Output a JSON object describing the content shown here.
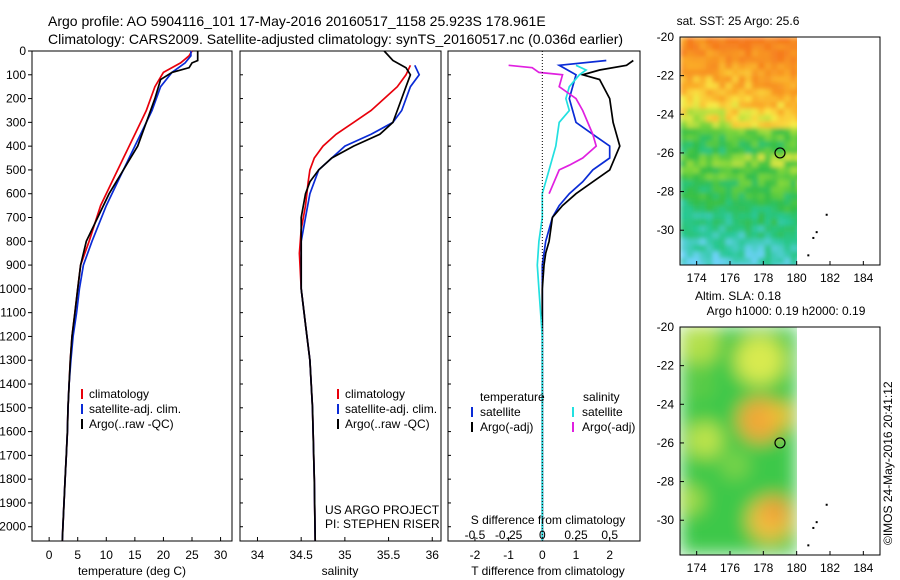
{
  "header": {
    "line1": "Argo profile: AO 5904116_101 17-May-2016 20160517_1158 25.923S 178.961E",
    "line2": "Climatology: CARS2009. Satellite-adjusted climatology: synTS_20160517.nc (0.036d earlier)"
  },
  "side_label": "©IMOS 24-May-2016 20:41:12",
  "colors": {
    "climatology": "#e8000b",
    "satellite": "#0a2bd6",
    "argo": "#000000",
    "salinity_sat": "#22e0e0",
    "salinity_argo": "#e020e0"
  },
  "chart_data": [
    {
      "type": "line",
      "xlabel": "temperature (deg C)",
      "xticks": [
        0,
        5,
        10,
        15,
        20,
        25,
        30
      ],
      "xlim": [
        -3,
        32
      ],
      "ylim": [
        2060,
        0
      ],
      "yticks": [
        0,
        100,
        200,
        300,
        400,
        500,
        600,
        700,
        800,
        900,
        1000,
        1100,
        1200,
        1300,
        1400,
        1500,
        1600,
        1700,
        1800,
        1900,
        2000
      ],
      "legend": [
        "climatology",
        "satellite-adj. clim.",
        "Argo(..raw -QC)"
      ],
      "series": [
        {
          "name": "climatology",
          "color": "#e8000b",
          "points": [
            [
              25,
              0
            ],
            [
              24.5,
              20
            ],
            [
              23,
              50
            ],
            [
              20,
              90
            ],
            [
              18.5,
              150
            ],
            [
              17,
              250
            ],
            [
              15,
              350
            ],
            [
              13,
              450
            ],
            [
              11,
              550
            ],
            [
              9,
              650
            ],
            [
              7,
              800
            ],
            [
              5.5,
              900
            ],
            [
              5,
              1000
            ],
            [
              4.5,
              1100
            ],
            [
              4,
              1200
            ],
            [
              3.7,
              1300
            ],
            [
              3.5,
              1400
            ],
            [
              3.3,
              1500
            ],
            [
              3.2,
              1600
            ],
            [
              3,
              1700
            ],
            [
              2.8,
              1800
            ],
            [
              2.6,
              1900
            ],
            [
              2.4,
              2000
            ],
            [
              2.3,
              2060
            ]
          ]
        },
        {
          "name": "satellite-adj. clim.",
          "color": "#0a2bd6",
          "points": [
            [
              24.8,
              0
            ],
            [
              24.8,
              20
            ],
            [
              23.8,
              50
            ],
            [
              21.5,
              90
            ],
            [
              19.5,
              150
            ],
            [
              18,
              250
            ],
            [
              16,
              350
            ],
            [
              14,
              450
            ],
            [
              12,
              550
            ],
            [
              10,
              650
            ],
            [
              7.5,
              800
            ],
            [
              6,
              900
            ],
            [
              5.3,
              1000
            ],
            [
              4.8,
              1100
            ],
            [
              4.2,
              1200
            ],
            [
              3.8,
              1300
            ],
            [
              3.5,
              1400
            ],
            [
              3.3,
              1500
            ],
            [
              3.2,
              1600
            ],
            [
              3,
              1700
            ],
            [
              2.8,
              1800
            ],
            [
              2.6,
              1900
            ],
            [
              2.4,
              2000
            ],
            [
              2.3,
              2060
            ]
          ]
        },
        {
          "name": "Argo(..raw -QC)",
          "color": "#000000",
          "points": [
            [
              26,
              0
            ],
            [
              26,
              40
            ],
            [
              25,
              50
            ],
            [
              24.5,
              70
            ],
            [
              21.5,
              90
            ],
            [
              19.5,
              120
            ],
            [
              18.5,
              200
            ],
            [
              17,
              300
            ],
            [
              15.5,
              400
            ],
            [
              13,
              500
            ],
            [
              10.5,
              600
            ],
            [
              8.5,
              700
            ],
            [
              6.5,
              800
            ],
            [
              5.5,
              900
            ],
            [
              5,
              1000
            ],
            [
              4.5,
              1100
            ],
            [
              4,
              1200
            ],
            [
              3.7,
              1300
            ],
            [
              3.5,
              1400
            ],
            [
              3.3,
              1500
            ],
            [
              3.2,
              1600
            ],
            [
              3,
              1700
            ],
            [
              2.8,
              1800
            ],
            [
              2.6,
              1900
            ],
            [
              2.4,
              2000
            ],
            [
              2.3,
              2060
            ]
          ]
        }
      ]
    },
    {
      "type": "line",
      "xlabel": "salinity",
      "xticks": [
        34,
        34.5,
        35,
        35.5,
        36
      ],
      "xlim": [
        33.8,
        36.1
      ],
      "ylim": [
        2060,
        0
      ],
      "legend": [
        "climatology",
        "satellite-adj. clim.",
        "Argo(..raw -QC)"
      ],
      "credit": [
        "US ARGO PROJECT",
        "PI: STEPHEN RISER"
      ],
      "series": [
        {
          "name": "climatology",
          "color": "#e8000b",
          "points": [
            [
              35.75,
              60
            ],
            [
              35.7,
              100
            ],
            [
              35.6,
              150
            ],
            [
              35.45,
              200
            ],
            [
              35.3,
              250
            ],
            [
              35.1,
              300
            ],
            [
              34.9,
              350
            ],
            [
              34.75,
              400
            ],
            [
              34.65,
              450
            ],
            [
              34.6,
              500
            ],
            [
              34.58,
              550
            ],
            [
              34.55,
              650
            ],
            [
              34.5,
              750
            ],
            [
              34.48,
              850
            ],
            [
              34.5,
              1000
            ],
            [
              34.55,
              1150
            ],
            [
              34.6,
              1300
            ],
            [
              34.63,
              1500
            ],
            [
              34.65,
              1800
            ],
            [
              34.66,
              2060
            ]
          ]
        },
        {
          "name": "satellite-adj. clim.",
          "color": "#0a2bd6",
          "points": [
            [
              35.8,
              60
            ],
            [
              35.85,
              100
            ],
            [
              35.75,
              150
            ],
            [
              35.65,
              250
            ],
            [
              35.55,
              300
            ],
            [
              35.3,
              350
            ],
            [
              35,
              400
            ],
            [
              34.85,
              450
            ],
            [
              34.7,
              500
            ],
            [
              34.6,
              600
            ],
            [
              34.55,
              700
            ],
            [
              34.5,
              800
            ],
            [
              34.5,
              900
            ],
            [
              34.5,
              1000
            ],
            [
              34.55,
              1150
            ],
            [
              34.6,
              1300
            ],
            [
              34.63,
              1500
            ],
            [
              34.65,
              1800
            ],
            [
              34.66,
              2060
            ]
          ]
        },
        {
          "name": "Argo(..raw -QC)",
          "color": "#000000",
          "points": [
            [
              35.45,
              0
            ],
            [
              35.55,
              40
            ],
            [
              35.7,
              70
            ],
            [
              35.75,
              100
            ],
            [
              35.7,
              150
            ],
            [
              35.6,
              250
            ],
            [
              35.55,
              300
            ],
            [
              35.4,
              350
            ],
            [
              35.1,
              400
            ],
            [
              34.85,
              450
            ],
            [
              34.7,
              500
            ],
            [
              34.6,
              550
            ],
            [
              34.55,
              600
            ],
            [
              34.5,
              700
            ],
            [
              34.5,
              800
            ],
            [
              34.5,
              900
            ],
            [
              34.5,
              1000
            ],
            [
              34.55,
              1150
            ],
            [
              34.6,
              1300
            ],
            [
              34.63,
              1500
            ],
            [
              34.65,
              1800
            ],
            [
              34.66,
              2060
            ]
          ]
        }
      ]
    },
    {
      "type": "line",
      "xlabel": "T difference from climatology",
      "xlabel_top": "S difference from climatology",
      "xticks_bottom": [
        -2,
        -1,
        0,
        1,
        2
      ],
      "xticks_top_labels": [
        "-0.5",
        "-0.25",
        "0",
        "0.25",
        "0.5"
      ],
      "xlim": [
        -2.8,
        2.9
      ],
      "ylim": [
        2060,
        0
      ],
      "legend_temperature": {
        "heading": "temperature",
        "items": [
          "satellite",
          "Argo(-adj)"
        ]
      },
      "legend_salinity": {
        "heading": "salinity",
        "items": [
          "satellite",
          "Argo(-adj)"
        ]
      },
      "series": [
        {
          "name": "satellite",
          "color": "#0a2bd6",
          "points": [
            [
              1.9,
              40
            ],
            [
              0.5,
              60
            ],
            [
              1,
              100
            ],
            [
              0.8,
              200
            ],
            [
              1,
              300
            ],
            [
              1.5,
              350
            ],
            [
              2,
              400
            ],
            [
              2,
              450
            ],
            [
              1.5,
              500
            ],
            [
              1.2,
              550
            ],
            [
              0.8,
              600
            ],
            [
              0.5,
              650
            ],
            [
              0.3,
              700
            ],
            [
              0.1,
              800
            ],
            [
              0,
              900
            ],
            [
              0,
              2060
            ]
          ]
        },
        {
          "name": "Argo(-adj)",
          "color": "#000000",
          "points": [
            [
              2.7,
              40
            ],
            [
              2.5,
              60
            ],
            [
              1.7,
              80
            ],
            [
              1.2,
              100
            ],
            [
              1.7,
              120
            ],
            [
              2,
              200
            ],
            [
              2.1,
              300
            ],
            [
              2.3,
              400
            ],
            [
              2,
              500
            ],
            [
              1.5,
              550
            ],
            [
              1,
              600
            ],
            [
              0.6,
              650
            ],
            [
              0.3,
              700
            ],
            [
              0.2,
              800
            ],
            [
              0.1,
              850
            ],
            [
              0.05,
              900
            ],
            [
              0,
              1000
            ],
            [
              0,
              2060
            ]
          ]
        },
        {
          "name": "salinity satellite",
          "color": "#22e0e0",
          "points": [
            [
              1,
              60
            ],
            [
              1.3,
              80
            ],
            [
              1.1,
              100
            ],
            [
              0.8,
              150
            ],
            [
              0.7,
              200
            ],
            [
              0.8,
              250
            ],
            [
              0.5,
              300
            ],
            [
              0.4,
              400
            ],
            [
              0.2,
              500
            ],
            [
              0,
              600
            ],
            [
              0,
              700
            ],
            [
              -0.1,
              800
            ],
            [
              -0.15,
              900
            ],
            [
              -0.1,
              1000
            ],
            [
              -0.05,
              1100
            ],
            [
              0,
              1200
            ],
            [
              0,
              2060
            ]
          ]
        },
        {
          "name": "salinity Argo(-adj)",
          "color": "#e020e0",
          "points": [
            [
              -1,
              60
            ],
            [
              -0.3,
              70
            ],
            [
              -0.1,
              90
            ],
            [
              0.6,
              100
            ],
            [
              0.5,
              150
            ],
            [
              1,
              200
            ],
            [
              1.2,
              250
            ],
            [
              1.5,
              350
            ],
            [
              1.6,
              400
            ],
            [
              1.2,
              450
            ],
            [
              0.8,
              480
            ],
            [
              0.5,
              500
            ],
            [
              0.2,
              600
            ]
          ]
        }
      ]
    },
    {
      "type": "heatmap",
      "title": "sat. SST: 25 Argo: 25.6",
      "xticks": [
        174,
        176,
        178,
        180,
        182,
        184
      ],
      "yticks": [
        -20,
        -22,
        -24,
        -26,
        -28,
        -30
      ],
      "xlim": [
        173,
        185
      ],
      "ylim": [
        -31.8,
        -20
      ],
      "data_xlim": [
        173,
        180
      ],
      "marker": [
        179,
        -26
      ]
    },
    {
      "type": "heatmap",
      "title": "Altim. SLA: 0.18",
      "subtitle": "Argo h1000: 0.19 h2000: 0.19",
      "xticks": [
        174,
        176,
        178,
        180,
        182,
        184
      ],
      "yticks": [
        -20,
        -22,
        -24,
        -26,
        -28,
        -30
      ],
      "xlim": [
        173,
        185
      ],
      "ylim": [
        -31.8,
        -20
      ],
      "data_xlim": [
        173,
        180
      ],
      "marker": [
        179,
        -26
      ]
    }
  ]
}
